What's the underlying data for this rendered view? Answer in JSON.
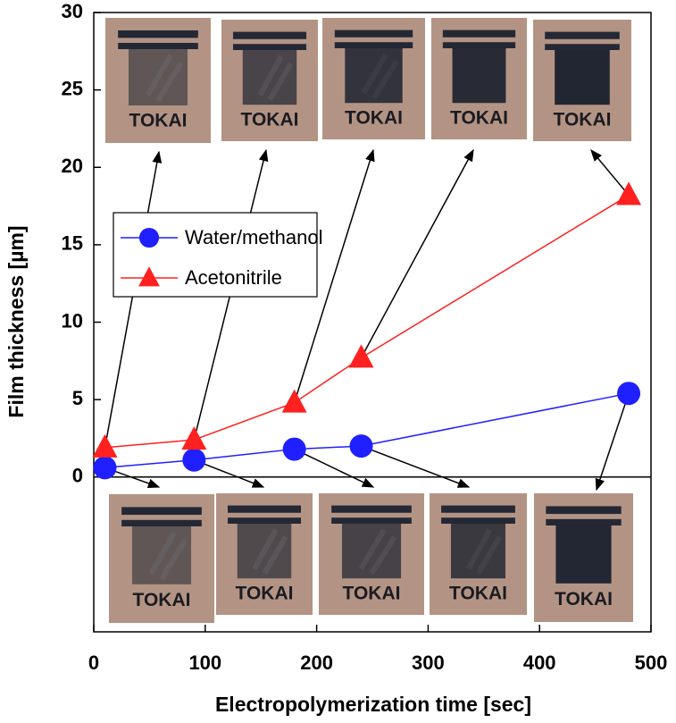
{
  "chart_data": {
    "type": "line",
    "x_label": "Electropolymerization  time [sec]",
    "y_label": "Film thickness [µm]",
    "photo_label": "TOKAI",
    "x": [
      10,
      90,
      180,
      240,
      480
    ],
    "series": [
      {
        "name": "Water/methanol",
        "color": "#1f1fff",
        "marker": "circle",
        "values": [
          0.6,
          1.1,
          1.8,
          2.0,
          5.4
        ]
      },
      {
        "name": "Acetonitrile",
        "color": "#ff2020",
        "marker": "triangle",
        "values": [
          1.9,
          2.4,
          4.8,
          7.7,
          18.2
        ]
      }
    ],
    "xlim": [
      0,
      500
    ],
    "xticks": [
      0,
      100,
      200,
      300,
      400,
      500
    ],
    "ylim": [
      -10,
      30
    ],
    "yticks": [
      0,
      5,
      10,
      15,
      20,
      25,
      30
    ],
    "grid": false,
    "legend": "upper left"
  }
}
